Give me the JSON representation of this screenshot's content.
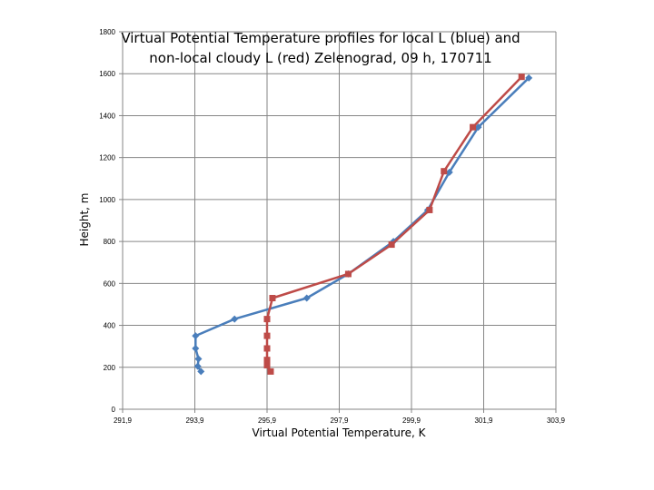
{
  "chart_data": {
    "type": "line",
    "title_lines": [
      "Virtual Potential Temperature profiles for local L (blue) and",
      "non-local cloudy  L (red)  Zelenograd, 09 h, 170711"
    ],
    "xlabel": "Virtual Potential Temperature, K",
    "ylabel": "Height, m",
    "xlim": [
      291.9,
      303.9
    ],
    "ylim": [
      0,
      1800
    ],
    "x_ticks": [
      291.9,
      293.9,
      295.9,
      297.9,
      299.9,
      301.9,
      303.9
    ],
    "x_tick_labels": [
      "291,9",
      "293,9",
      "295,9",
      "297,9",
      "299,9",
      "301,9",
      "303,9"
    ],
    "y_ticks": [
      0,
      200,
      400,
      600,
      800,
      1000,
      1200,
      1400,
      1600,
      1800
    ],
    "y_tick_labels": [
      "0",
      "200",
      "400",
      "600",
      "800",
      "1000",
      "1200",
      "1400",
      "1600",
      "1800"
    ],
    "grid": true,
    "legend": "none",
    "colors": {
      "blue": "#4a7ebb",
      "red": "#be4b48",
      "grid": "#868686",
      "axis": "#868686"
    },
    "series": [
      {
        "color": "blue",
        "marker": "diamond",
        "points": [
          {
            "x": 294.07,
            "y": 180
          },
          {
            "x": 293.98,
            "y": 205
          },
          {
            "x": 294.0,
            "y": 240
          },
          {
            "x": 293.92,
            "y": 290
          },
          {
            "x": 293.92,
            "y": 350
          },
          {
            "x": 295.0,
            "y": 430
          },
          {
            "x": 297.0,
            "y": 530
          },
          {
            "x": 298.15,
            "y": 645
          },
          {
            "x": 299.4,
            "y": 800
          },
          {
            "x": 300.35,
            "y": 950
          },
          {
            "x": 300.95,
            "y": 1130
          },
          {
            "x": 301.75,
            "y": 1345
          },
          {
            "x": 303.15,
            "y": 1580
          }
        ]
      },
      {
        "color": "red",
        "marker": "square",
        "points": [
          {
            "x": 296.0,
            "y": 180
          },
          {
            "x": 295.9,
            "y": 210
          },
          {
            "x": 295.9,
            "y": 235
          },
          {
            "x": 295.9,
            "y": 290
          },
          {
            "x": 295.9,
            "y": 350
          },
          {
            "x": 295.9,
            "y": 430
          },
          {
            "x": 296.05,
            "y": 530
          },
          {
            "x": 298.15,
            "y": 645
          },
          {
            "x": 299.35,
            "y": 785
          },
          {
            "x": 300.4,
            "y": 950
          },
          {
            "x": 300.8,
            "y": 1135
          },
          {
            "x": 301.6,
            "y": 1345
          },
          {
            "x": 302.95,
            "y": 1585
          }
        ]
      }
    ]
  }
}
